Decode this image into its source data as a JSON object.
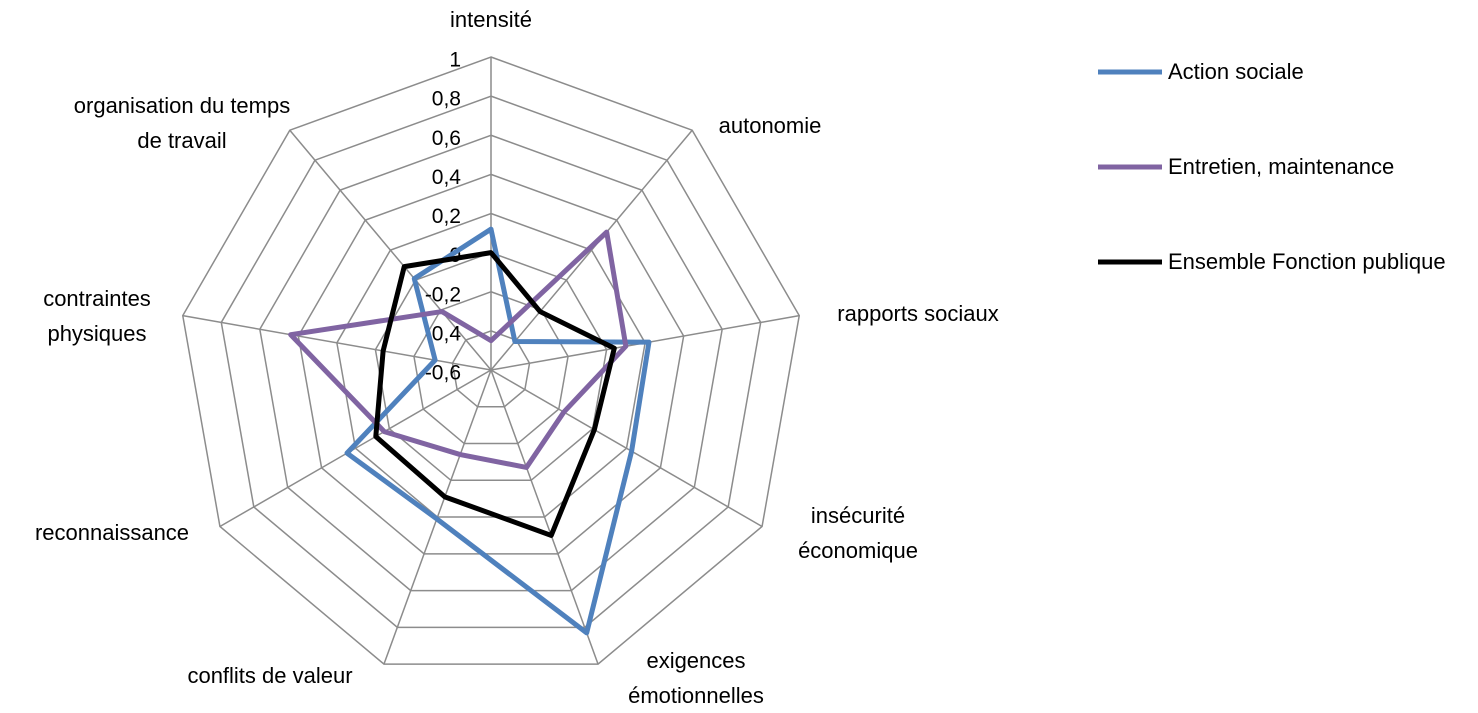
{
  "chart_data": {
    "type": "radar",
    "categories": [
      "intensité",
      "autonomie",
      "rapports sociaux",
      "insécurité économique",
      "exigences émotionnelles",
      "conflits de valeur",
      "reconnaissance",
      "contraintes physiques",
      "organisation du temps de travail"
    ],
    "ylim": [
      -0.6,
      1
    ],
    "yticks": [
      {
        "value": -0.6,
        "label": "-0,6"
      },
      {
        "value": -0.4,
        "label": "-0,4"
      },
      {
        "value": -0.2,
        "label": "-0,2"
      },
      0,
      {
        "value": 0.2,
        "label": "0,2"
      },
      {
        "value": 0.4,
        "label": "0,4"
      },
      {
        "value": 0.6,
        "label": "0,6"
      },
      {
        "value": 0.8,
        "label": "0,8"
      },
      1
    ],
    "grid": true,
    "legend": "right",
    "series": [
      {
        "name": "Action sociale",
        "color": "#4f81bd",
        "values": [
          0.12,
          -0.41,
          0.22,
          0.23,
          0.83,
          0.21,
          0.25,
          -0.31,
          0.01
        ]
      },
      {
        "name": "Entretien, maintenance",
        "color": "#8064a2",
        "values": [
          -0.45,
          0.32,
          0.1,
          -0.17,
          -0.07,
          -0.14,
          0.03,
          0.44,
          -0.21
        ]
      },
      {
        "name": "Ensemble Fonction publique",
        "color": "#000000",
        "values": [
          0.0,
          -0.21,
          0.04,
          0.01,
          0.3,
          0.09,
          0.08,
          -0.04,
          0.09
        ]
      }
    ]
  }
}
